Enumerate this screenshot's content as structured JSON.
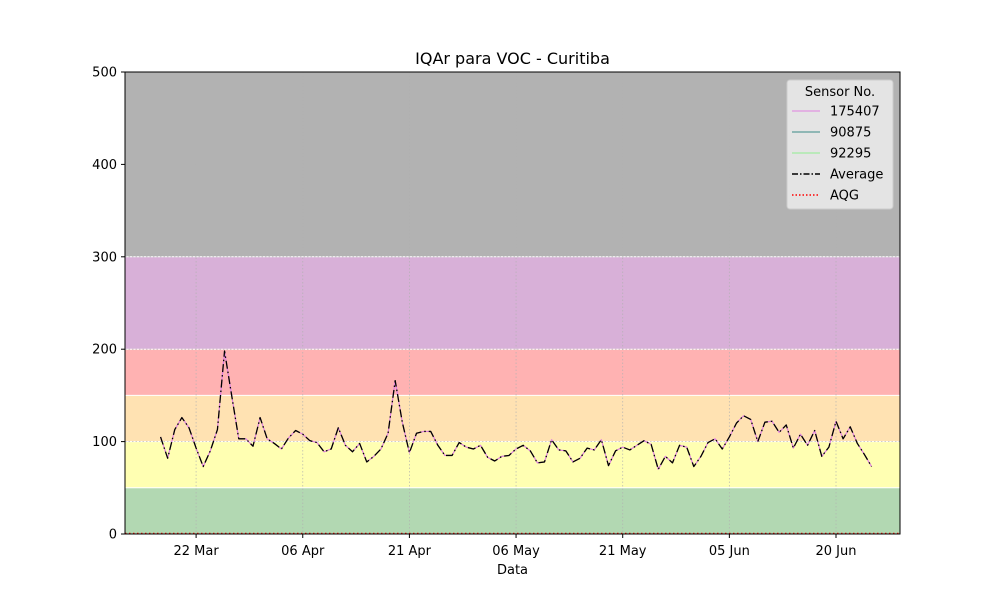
{
  "chart_data": {
    "type": "line",
    "title": "IQAr para VOC - Curitiba",
    "xlabel": "Data",
    "ylabel": "",
    "ylim": [
      0,
      500
    ],
    "yticks": [
      0,
      100,
      200,
      300,
      400,
      500
    ],
    "xlim": [
      "2023-03-12",
      "2023-06-29"
    ],
    "xtick_labels": [
      "22 Mar",
      "06 Apr",
      "21 Apr",
      "06 May",
      "21 May",
      "05 Jun",
      "20 Jun"
    ],
    "xtick_dates": [
      "2023-03-22",
      "2023-04-06",
      "2023-04-21",
      "2023-05-06",
      "2023-05-21",
      "2023-06-05",
      "2023-06-20"
    ],
    "grid": true,
    "bands": [
      {
        "from": 0,
        "to": 50,
        "color": "#b2d8b2"
      },
      {
        "from": 50,
        "to": 100,
        "color": "#ffffb2"
      },
      {
        "from": 100,
        "to": 150,
        "color": "#ffe2b2"
      },
      {
        "from": 150,
        "to": 200,
        "color": "#ffb2b2"
      },
      {
        "from": 200,
        "to": 300,
        "color": "#d8b0d8"
      },
      {
        "from": 300,
        "to": 500,
        "color": "#b2b2b2"
      }
    ],
    "legend": {
      "title": "Sensor No.",
      "position": "upper-right",
      "entries": [
        {
          "label": "175407",
          "color": "#e07fe0",
          "style": "solid"
        },
        {
          "label": "90875",
          "color": "#3a8a86",
          "style": "solid"
        },
        {
          "label": "92295",
          "color": "#90ee90",
          "style": "solid"
        },
        {
          "label": "Average",
          "color": "#000000",
          "style": "dashdot"
        },
        {
          "label": "AQG",
          "color": "#ff0000",
          "style": "dotted"
        }
      ]
    },
    "x_start": "2023-03-17",
    "x_step_days": 1,
    "series": [
      {
        "name": "175407",
        "color": "#e07fe0",
        "style": "solid"
      },
      {
        "name": "Average",
        "color": "#000000",
        "style": "dashdot"
      }
    ],
    "values": [
      105,
      82,
      113,
      126,
      115,
      93,
      73,
      90,
      113,
      198,
      150,
      103,
      103,
      95,
      126,
      103,
      98,
      92,
      104,
      112,
      108,
      101,
      99,
      89,
      92,
      115,
      96,
      89,
      98,
      78,
      84,
      92,
      109,
      166,
      121,
      88,
      109,
      111,
      111,
      96,
      85,
      85,
      99,
      94,
      92,
      96,
      83,
      79,
      84,
      85,
      92,
      96,
      90,
      77,
      78,
      102,
      91,
      90,
      78,
      82,
      93,
      91,
      102,
      74,
      90,
      94,
      91,
      96,
      101,
      97,
      70,
      84,
      77,
      96,
      94,
      73,
      84,
      99,
      103,
      92,
      105,
      120,
      128,
      124,
      100,
      121,
      122,
      110,
      118,
      93,
      108,
      96,
      112,
      84,
      94,
      122,
      103,
      116,
      98,
      86,
      73
    ],
    "aqg_value": 0.5
  }
}
